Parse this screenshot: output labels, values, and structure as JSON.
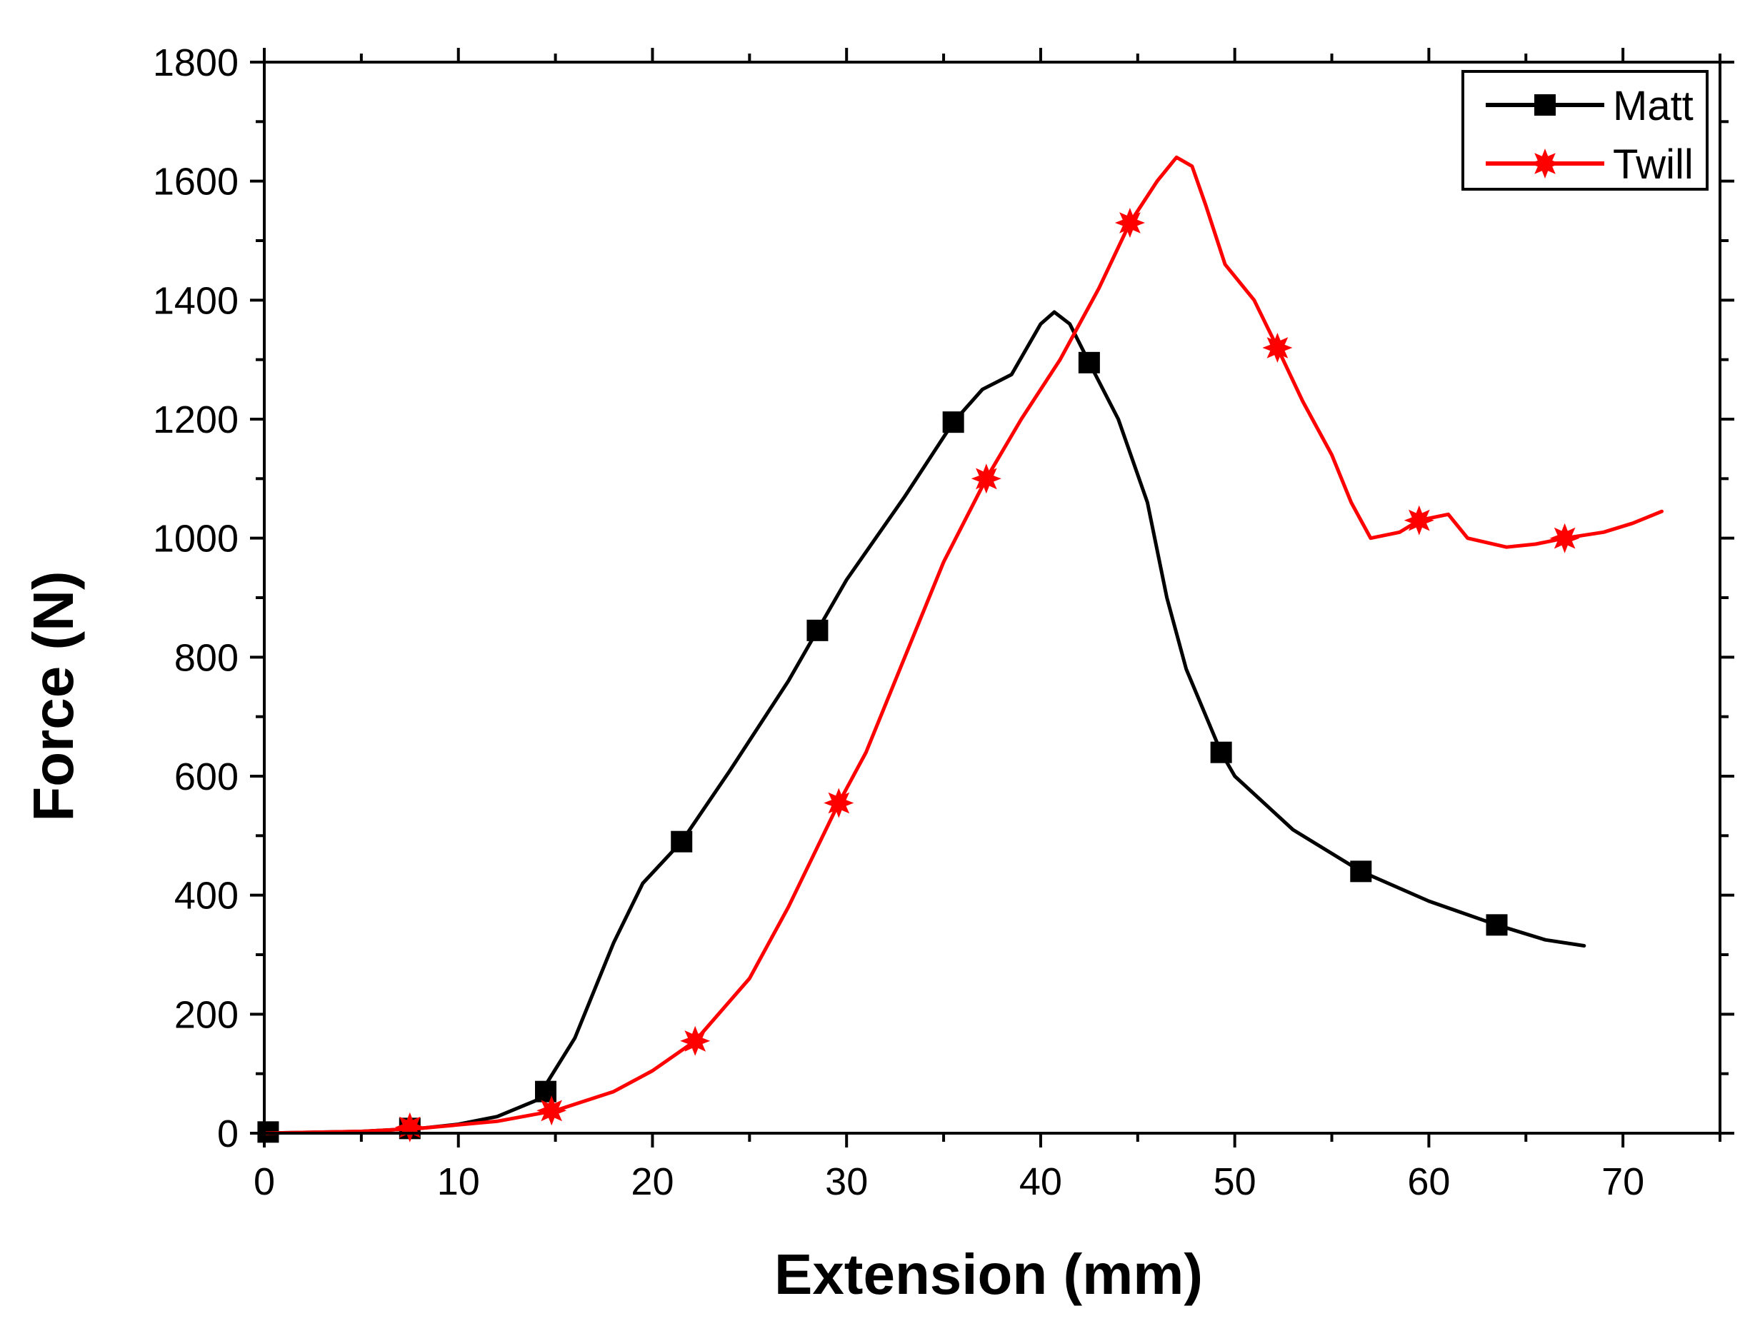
{
  "chart_data": {
    "type": "line",
    "title": "",
    "xlabel": "Extension (mm)",
    "ylabel": "Force (N)",
    "xlim": [
      0,
      75
    ],
    "ylim": [
      0,
      1800
    ],
    "xticks": [
      0,
      10,
      20,
      30,
      40,
      50,
      60,
      70
    ],
    "yticks": [
      0,
      200,
      400,
      600,
      800,
      1000,
      1200,
      1400,
      1600,
      1800
    ],
    "xtick_labels": [
      "0",
      "10",
      "20",
      "30",
      "40",
      "50",
      "60",
      "70"
    ],
    "ytick_labels": [
      "0",
      "200",
      "400",
      "600",
      "800",
      "1000",
      "1200",
      "1400",
      "1600",
      "1800"
    ],
    "x_minor_step": 5,
    "y_minor_step": 100,
    "grid": false,
    "legend_position": "top-right",
    "series": [
      {
        "name": "Matt",
        "color": "#000000",
        "marker": "square",
        "points": [
          [
            0,
            0
          ],
          [
            5,
            3
          ],
          [
            8,
            8
          ],
          [
            10,
            15
          ],
          [
            12,
            28
          ],
          [
            14,
            55
          ],
          [
            16,
            160
          ],
          [
            18,
            320
          ],
          [
            19.5,
            420
          ],
          [
            21.5,
            490
          ],
          [
            24,
            610
          ],
          [
            27,
            760
          ],
          [
            28.5,
            845
          ],
          [
            30,
            930
          ],
          [
            33,
            1070
          ],
          [
            35.5,
            1195
          ],
          [
            37,
            1250
          ],
          [
            38.5,
            1275
          ],
          [
            40,
            1360
          ],
          [
            40.7,
            1380
          ],
          [
            41.5,
            1360
          ],
          [
            42.5,
            1295
          ],
          [
            44,
            1200
          ],
          [
            45.5,
            1060
          ],
          [
            46.5,
            900
          ],
          [
            47.5,
            780
          ],
          [
            49.3,
            640
          ],
          [
            50,
            600
          ],
          [
            53,
            510
          ],
          [
            56.5,
            440
          ],
          [
            60,
            390
          ],
          [
            63.5,
            350
          ],
          [
            66,
            325
          ],
          [
            68,
            315
          ]
        ],
        "marker_points": [
          [
            0.2,
            2
          ],
          [
            7.5,
            8
          ],
          [
            14.5,
            70
          ],
          [
            21.5,
            490
          ],
          [
            28.5,
            845
          ],
          [
            35.5,
            1195
          ],
          [
            42.5,
            1295
          ],
          [
            49.3,
            640
          ],
          [
            56.5,
            440
          ],
          [
            63.5,
            350
          ]
        ]
      },
      {
        "name": "Twill",
        "color": "#ff0000",
        "marker": "star",
        "points": [
          [
            0,
            0
          ],
          [
            5,
            3
          ],
          [
            8,
            8
          ],
          [
            12,
            20
          ],
          [
            15,
            38
          ],
          [
            18,
            70
          ],
          [
            20,
            105
          ],
          [
            22.2,
            155
          ],
          [
            25,
            260
          ],
          [
            27,
            380
          ],
          [
            29.6,
            555
          ],
          [
            31,
            640
          ],
          [
            33,
            800
          ],
          [
            35,
            960
          ],
          [
            37.2,
            1100
          ],
          [
            39,
            1200
          ],
          [
            41,
            1300
          ],
          [
            43,
            1420
          ],
          [
            44.6,
            1530
          ],
          [
            46,
            1600
          ],
          [
            47,
            1640
          ],
          [
            47.8,
            1625
          ],
          [
            48.5,
            1560
          ],
          [
            49.5,
            1460
          ],
          [
            51,
            1400
          ],
          [
            52.2,
            1320
          ],
          [
            53.5,
            1230
          ],
          [
            55,
            1140
          ],
          [
            56,
            1060
          ],
          [
            57,
            1000
          ],
          [
            58.5,
            1010
          ],
          [
            59.5,
            1030
          ],
          [
            61,
            1040
          ],
          [
            62,
            1000
          ],
          [
            64,
            985
          ],
          [
            65.5,
            990
          ],
          [
            67,
            1000
          ],
          [
            69,
            1010
          ],
          [
            70.5,
            1025
          ],
          [
            72,
            1045
          ]
        ],
        "marker_points": [
          [
            7.5,
            10
          ],
          [
            14.8,
            38
          ],
          [
            22.2,
            155
          ],
          [
            29.6,
            555
          ],
          [
            37.2,
            1100
          ],
          [
            44.6,
            1530
          ],
          [
            52.2,
            1320
          ],
          [
            59.5,
            1030
          ],
          [
            67,
            1000
          ]
        ]
      }
    ]
  }
}
